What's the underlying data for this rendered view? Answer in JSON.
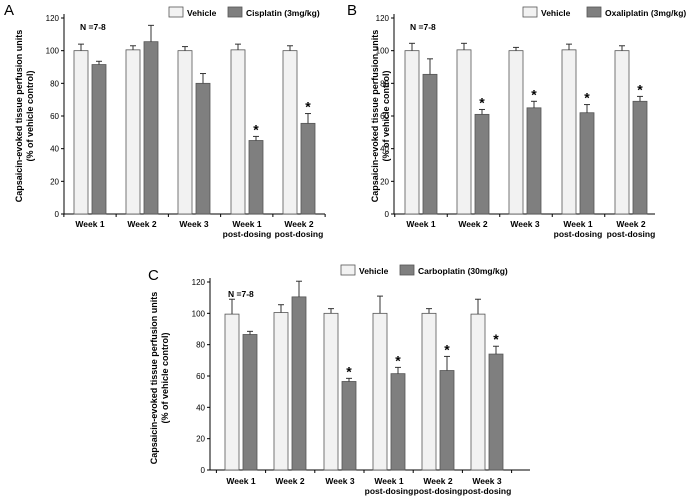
{
  "figure": {
    "ylabel": [
      "Capsaicin-evoked tissue perfusion units",
      "(% of vehicle control)"
    ]
  },
  "chart_data": [
    {
      "panel": "A",
      "type": "bar",
      "n_label": "N =7-8",
      "ylim": [
        0,
        120
      ],
      "yticks": [
        0,
        20,
        40,
        60,
        80,
        100,
        120
      ],
      "categories": [
        [
          "Week 1"
        ],
        [
          "Week 2"
        ],
        [
          "Week 3"
        ],
        [
          "Week 1",
          "post-dosing"
        ],
        [
          "Week 2",
          "post-dosing"
        ]
      ],
      "series": [
        {
          "name": "Vehicle",
          "color": "#f2f2f2",
          "values": [
            100,
            100.5,
            100,
            100.5,
            100
          ],
          "errors": [
            4,
            2.5,
            2.5,
            3.5,
            3
          ]
        },
        {
          "name": "Cisplatin  (3mg/kg)",
          "color": "#7f7f7f",
          "values": [
            91.5,
            105.5,
            80,
            45,
            55.5
          ],
          "errors": [
            2,
            10,
            6,
            2.5,
            6
          ],
          "significant": [
            false,
            false,
            false,
            true,
            true
          ]
        }
      ]
    },
    {
      "panel": "B",
      "type": "bar",
      "n_label": "N =7-8",
      "ylim": [
        0,
        120
      ],
      "yticks": [
        0,
        20,
        40,
        60,
        80,
        100,
        120
      ],
      "categories": [
        [
          "Week 1"
        ],
        [
          "Week 2"
        ],
        [
          "Week 3"
        ],
        [
          "Week 1",
          "post-dosing"
        ],
        [
          "Week 2",
          "post-dosing"
        ]
      ],
      "series": [
        {
          "name": "Vehicle",
          "color": "#f2f2f2",
          "values": [
            100,
            100.5,
            100,
            100.5,
            100
          ],
          "errors": [
            4.5,
            4,
            2,
            3.5,
            3
          ]
        },
        {
          "name": "Oxaliplatin (3mg/kg)",
          "color": "#7f7f7f",
          "values": [
            85.5,
            61,
            65,
            62,
            69
          ],
          "errors": [
            9.5,
            3,
            4,
            5,
            3
          ],
          "significant": [
            false,
            true,
            true,
            true,
            true
          ]
        }
      ]
    },
    {
      "panel": "C",
      "type": "bar",
      "n_label": "N =7-8",
      "ylim": [
        0,
        120
      ],
      "yticks": [
        0,
        20,
        40,
        60,
        80,
        100,
        120
      ],
      "categories": [
        [
          "Week 1"
        ],
        [
          "Week 2"
        ],
        [
          "Week 3"
        ],
        [
          "Week 1",
          "post-dosing"
        ],
        [
          "Week 2",
          "post-dosing"
        ],
        [
          "Week 3",
          "post-dosing"
        ]
      ],
      "series": [
        {
          "name": "Vehicle",
          "color": "#f2f2f2",
          "values": [
            99.5,
            100.5,
            100,
            100,
            100,
            99.5
          ],
          "errors": [
            9.5,
            5,
            3,
            11,
            3,
            9.5
          ]
        },
        {
          "name": "Carboplatin (30mg/kg)",
          "color": "#7f7f7f",
          "values": [
            86.5,
            110.5,
            56.5,
            61.5,
            63.5,
            74
          ],
          "errors": [
            2,
            10,
            2,
            4,
            9,
            5
          ],
          "significant": [
            false,
            false,
            true,
            true,
            true,
            true
          ]
        }
      ]
    }
  ]
}
